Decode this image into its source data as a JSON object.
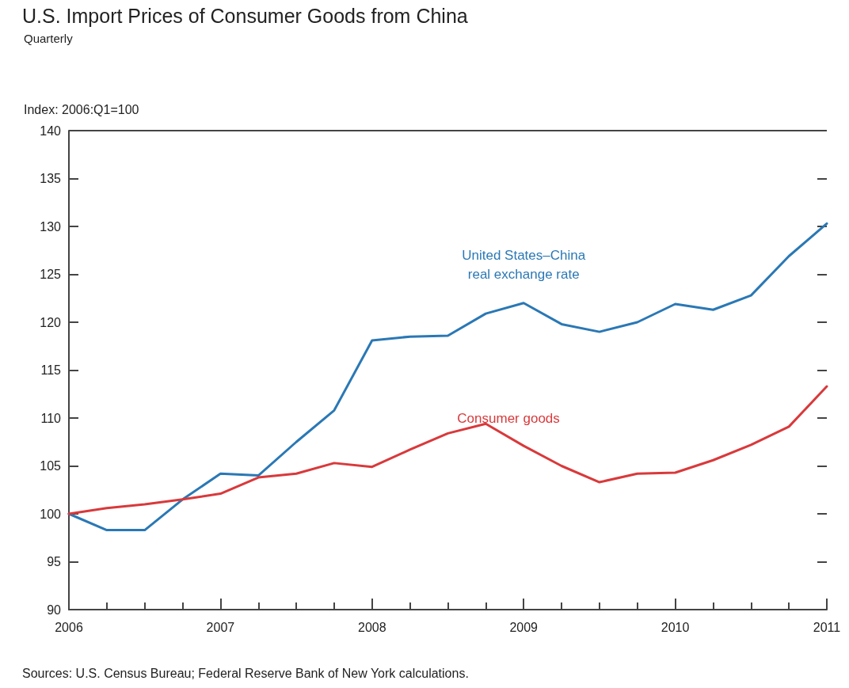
{
  "chart_data": {
    "type": "line",
    "title": "U.S. Import Prices of Consumer Goods from China",
    "subtitle": "Quarterly",
    "ylabel": "Index: 2006:Q1=100",
    "annotations": [
      "Sources: U.S. Census Bureau; Federal Reserve Bank of New York calculations."
    ],
    "x": [
      2006,
      2006.25,
      2006.5,
      2006.75,
      2007,
      2007.25,
      2007.5,
      2007.75,
      2008,
      2008.25,
      2008.5,
      2008.75,
      2009,
      2009.25,
      2009.5,
      2009.75,
      2010,
      2010.25,
      2010.5,
      2010.75,
      2011
    ],
    "series": [
      {
        "name": "United States–China real exchange rate",
        "color": "#2a78b5",
        "values": [
          100,
          98.3,
          98.3,
          101.5,
          104.2,
          104,
          107.5,
          110.8,
          118.1,
          118.5,
          118.6,
          120.9,
          122,
          119.8,
          119,
          120,
          121.9,
          121.3,
          122.8,
          126.9,
          130.3
        ]
      },
      {
        "name": "Consumer goods",
        "color": "#d9393b",
        "values": [
          100,
          100.6,
          101,
          101.5,
          102.1,
          103.8,
          104.2,
          105.3,
          104.9,
          106.7,
          108.4,
          109.4,
          107.1,
          105,
          103.3,
          104.2,
          104.3,
          105.6,
          107.2,
          109.1,
          113.3
        ]
      }
    ],
    "xlim": [
      2006,
      2011
    ],
    "xticks": [
      2006,
      2007,
      2008,
      2009,
      2010,
      2011
    ],
    "ylim": [
      90,
      140
    ],
    "yticks": [
      90,
      95,
      100,
      105,
      110,
      115,
      120,
      125,
      130,
      135,
      140
    ],
    "grid": false,
    "marker": "none",
    "line_style": "solid"
  }
}
